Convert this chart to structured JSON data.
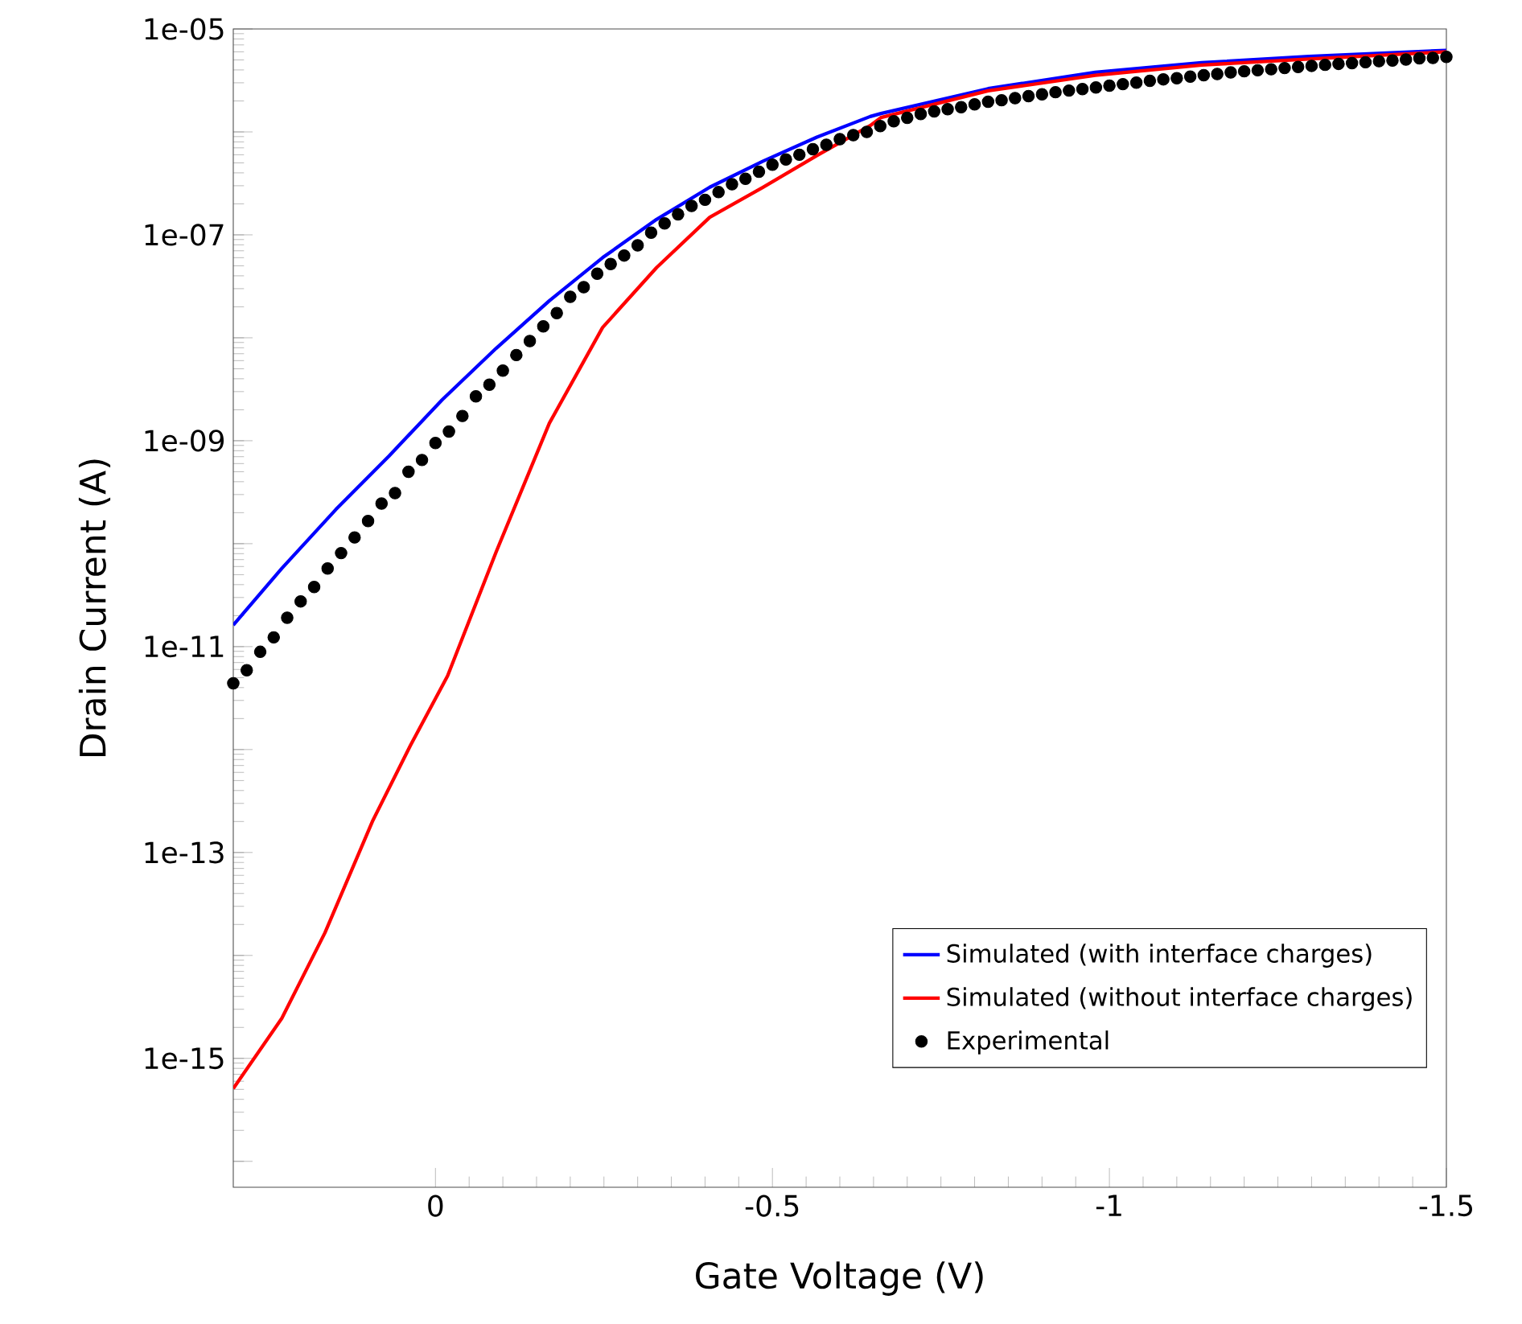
{
  "chart_data": {
    "type": "line",
    "xlabel": "Gate Voltage (V)",
    "ylabel": "Drain Current (A)",
    "xlim": [
      0.3,
      -1.5
    ],
    "ylim": [
      5.6e-17,
      1e-05
    ],
    "log": "y",
    "grid": false,
    "legend": "bottom right",
    "xticks": [
      {
        "value": 0,
        "label": "0"
      },
      {
        "value": -0.5,
        "label": "-0.5"
      },
      {
        "value": -1,
        "label": "-1"
      },
      {
        "value": -1.5,
        "label": "-1.5"
      }
    ],
    "yticks": [
      {
        "value": 1e-16,
        "label": null
      },
      {
        "value": 1e-15,
        "label": "1e-15"
      },
      {
        "value": 1e-14,
        "label": null
      },
      {
        "value": 1e-13,
        "label": "1e-13"
      },
      {
        "value": 1e-12,
        "label": null
      },
      {
        "value": 1e-11,
        "label": "1e-11"
      },
      {
        "value": 1e-10,
        "label": null
      },
      {
        "value": 1e-09,
        "label": "1e-09"
      },
      {
        "value": 1e-08,
        "label": null
      },
      {
        "value": 1e-07,
        "label": "1e-07"
      },
      {
        "value": 1e-06,
        "label": null
      },
      {
        "value": 1e-05,
        "label": "1e-05"
      }
    ],
    "series": [
      {
        "name": "Simulated (with interface charges)",
        "color": "#0000ff",
        "marker": "none",
        "line_style": "solid",
        "x": [
          0.3,
          0.228,
          0.148,
          0.069,
          -0.01,
          -0.09,
          -0.169,
          -0.248,
          -0.328,
          -0.407,
          -0.486,
          -0.566,
          -0.645,
          -0.661,
          -0.82,
          -0.979,
          -1.137,
          -1.296,
          -1.5
        ],
        "values": [
          1.62e-11,
          5.75e-11,
          2.14e-10,
          7.1e-10,
          2.5e-09,
          7.9e-09,
          2.29e-08,
          6e-08,
          1.41e-07,
          2.9e-07,
          5.2e-07,
          8.9e-07,
          1.41e-06,
          1.51e-06,
          2.63e-06,
          3.8e-06,
          4.7e-06,
          5.4e-06,
          6.2e-06
        ]
      },
      {
        "name": "Simulated (without interface charges)",
        "color": "#ff0000",
        "marker": "none",
        "line_style": "solid",
        "x": [
          0.3,
          0.228,
          0.164,
          0.093,
          0.037,
          -0.018,
          -0.09,
          -0.169,
          -0.248,
          -0.328,
          -0.407,
          -0.486,
          -0.566,
          -0.645,
          -0.661,
          -0.82,
          -0.979,
          -1.137,
          -1.296,
          -1.5
        ],
        "values": [
          5.1e-16,
          2.45e-15,
          1.66e-14,
          2.04e-13,
          1.1e-12,
          5.2e-12,
          8.3e-11,
          1.48e-09,
          1.26e-08,
          4.8e-08,
          1.48e-07,
          2.9e-07,
          5.9e-07,
          1.15e-06,
          1.38e-06,
          2.51e-06,
          3.55e-06,
          4.47e-06,
          5.1e-06,
          6e-06
        ]
      },
      {
        "name": "Experimental",
        "type": "scatter",
        "color": "#000000",
        "marker": "circle",
        "x": [
          0.3,
          0.28,
          0.26,
          0.24,
          0.22,
          0.2,
          0.18,
          0.16,
          0.14,
          0.12,
          0.1,
          0.08,
          0.06,
          0.04,
          0.02,
          0.0,
          -0.02,
          -0.04,
          -0.06,
          -0.08,
          -0.1,
          -0.12,
          -0.14,
          -0.16,
          -0.18,
          -0.2,
          -0.22,
          -0.24,
          -0.26,
          -0.28,
          -0.3,
          -0.32,
          -0.34,
          -0.36,
          -0.38,
          -0.4,
          -0.42,
          -0.44,
          -0.46,
          -0.48,
          -0.5,
          -0.52,
          -0.54,
          -0.56,
          -0.58,
          -0.6,
          -0.62,
          -0.64,
          -0.66,
          -0.68,
          -0.7,
          -0.72,
          -0.74,
          -0.76,
          -0.78,
          -0.8,
          -0.82,
          -0.84,
          -0.86,
          -0.88,
          -0.9,
          -0.92,
          -0.94,
          -0.96,
          -0.98,
          -1.0,
          -1.02,
          -1.04,
          -1.06,
          -1.08,
          -1.1,
          -1.12,
          -1.14,
          -1.16,
          -1.18,
          -1.2,
          -1.22,
          -1.24,
          -1.26,
          -1.28,
          -1.3,
          -1.32,
          -1.34,
          -1.36,
          -1.38,
          -1.4,
          -1.42,
          -1.44,
          -1.46,
          -1.48,
          -1.5
        ],
        "values": [
          4.4e-12,
          5.9e-12,
          8.9e-12,
          1.23e-11,
          1.91e-11,
          2.75e-11,
          3.8e-11,
          5.75e-11,
          8.1e-11,
          1.15e-10,
          1.66e-10,
          2.45e-10,
          3.1e-10,
          5e-10,
          6.5e-10,
          9.5e-10,
          1.23e-09,
          1.74e-09,
          2.7e-09,
          3.5e-09,
          4.8e-09,
          6.8e-09,
          9.3e-09,
          1.29e-08,
          1.74e-08,
          2.5e-08,
          3.1e-08,
          4.2e-08,
          5.2e-08,
          6.3e-08,
          7.9e-08,
          1.05e-07,
          1.29e-07,
          1.58e-07,
          1.91e-07,
          2.19e-07,
          2.6e-07,
          3.1e-07,
          3.5e-07,
          4.1e-07,
          4.8e-07,
          5.4e-07,
          6e-07,
          6.8e-07,
          7.5e-07,
          8.5e-07,
          9.3e-07,
          1e-06,
          1.14e-06,
          1.27e-06,
          1.37e-06,
          1.49e-06,
          1.58e-06,
          1.66e-06,
          1.74e-06,
          1.85e-06,
          1.96e-06,
          2.03e-06,
          2.13e-06,
          2.23e-06,
          2.32e-06,
          2.43e-06,
          2.52e-06,
          2.61e-06,
          2.7e-06,
          2.81e-06,
          2.91e-06,
          3.01e-06,
          3.13e-06,
          3.24e-06,
          3.32e-06,
          3.44e-06,
          3.56e-06,
          3.65e-06,
          3.78e-06,
          3.88e-06,
          3.97e-06,
          4.06e-06,
          4.17e-06,
          4.27e-06,
          4.38e-06,
          4.48e-06,
          4.58e-06,
          4.65e-06,
          4.75e-06,
          4.86e-06,
          4.93e-06,
          5.05e-06,
          5.18e-06,
          5.24e-06,
          5.36e-06
        ]
      }
    ]
  }
}
